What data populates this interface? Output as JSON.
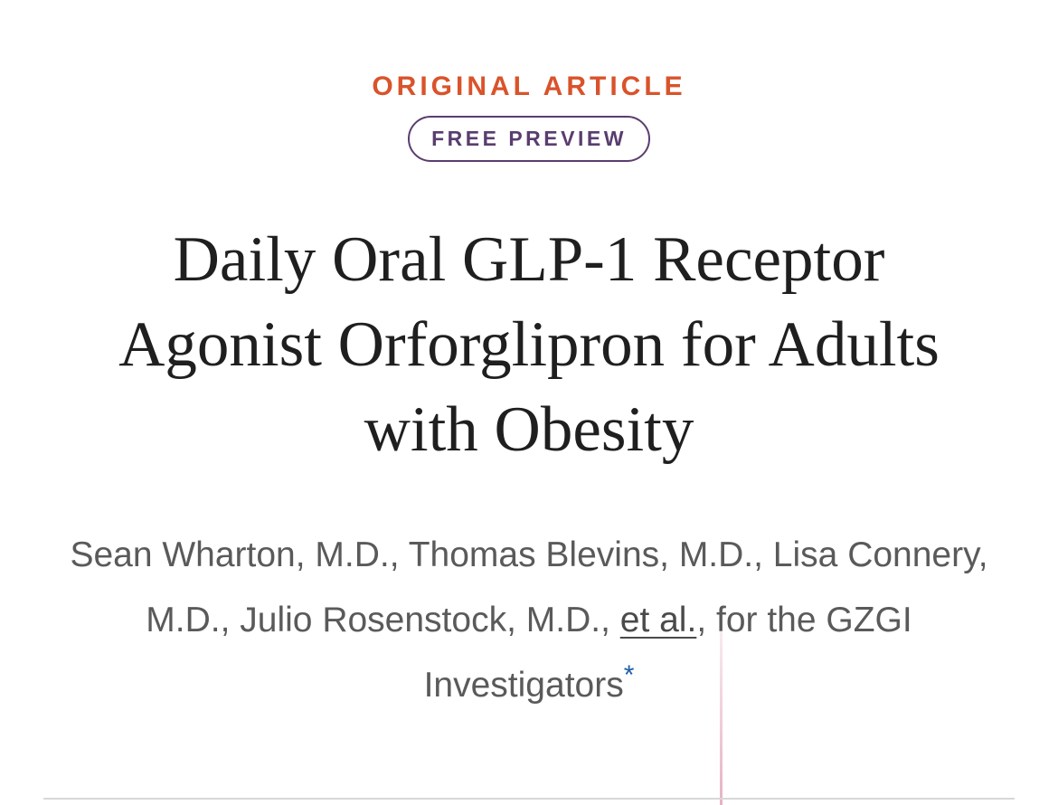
{
  "header": {
    "article_type": "ORIGINAL ARTICLE",
    "badge": "FREE PREVIEW"
  },
  "article": {
    "title": "Daily Oral GLP-1 Receptor Agonist Orforglipron for Adults with Obesity",
    "authors_text": "Sean Wharton, M.D., Thomas Blevins, M.D., Lisa Connery, M.D., Julio Rosenstock, M.D., ",
    "et_al": "et al.",
    "group_text": ", for the GZGI Investigators",
    "asterisk": "*"
  },
  "colors": {
    "article_type": "#d9532b",
    "badge": "#5a3d6e",
    "title": "#1f1f1f",
    "authors": "#5a5a5a",
    "asterisk": "#1d5fa8",
    "divider": "#d7d7d7"
  }
}
